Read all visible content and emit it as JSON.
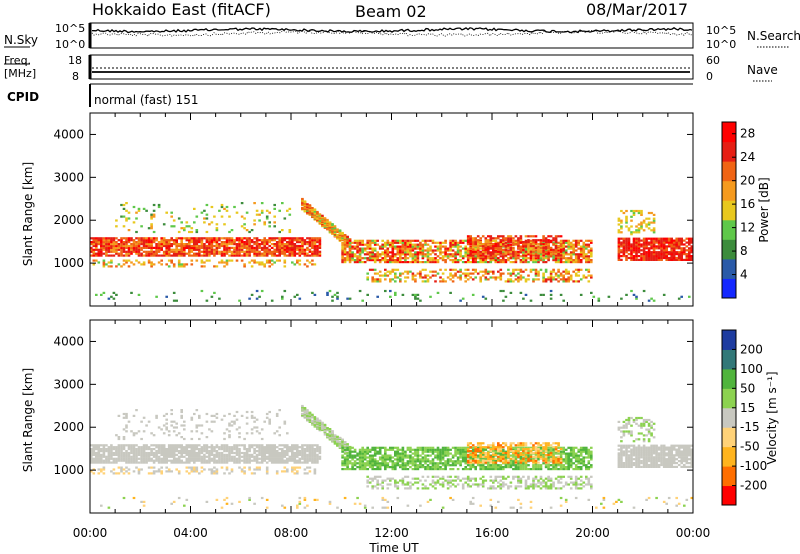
{
  "header": {
    "station": "Hokkaido East (fitACF)",
    "beam": "Beam 02",
    "date": "08/Mar/2017"
  },
  "noise_panel": {
    "left_label": "N.Sky",
    "right_label": "N.Search",
    "ticks": [
      "10^5",
      "10^0"
    ]
  },
  "freq_panel": {
    "left_label_1": "Freq.",
    "left_label_2": "[MHz]",
    "left_ticks": [
      "18",
      "8"
    ],
    "right_label": "Nave",
    "right_ticks": [
      "60",
      "0"
    ]
  },
  "cpid": {
    "label": "CPID",
    "mode_text": "normal (fast) 151"
  },
  "colors": {
    "power": [
      "#1428ff",
      "#2a5aa8",
      "#3c8c3c",
      "#5fc84a",
      "#e8c81e",
      "#f59a1e",
      "#f06414",
      "#e61e14",
      "#ff0000"
    ],
    "velocity": [
      "#ff0000",
      "#ff6e00",
      "#ffb41e",
      "#ffd278",
      "#c8c8c0",
      "#8cd250",
      "#50b43c",
      "#327878",
      "#1e3ca0"
    ]
  },
  "chart_data": [
    {
      "type": "heatmap",
      "name": "power",
      "xlabel": "",
      "ylabel": "Slant Range [km]",
      "x_ticks": [
        "00:00",
        "04:00",
        "08:00",
        "12:00",
        "16:00",
        "20:00",
        "00:00"
      ],
      "y_ticks": [
        "1000",
        "2000",
        "3000",
        "4000"
      ],
      "ylim": [
        0,
        4500
      ],
      "colorbar": {
        "label": "Power [dB]",
        "ticks": [
          "4",
          "8",
          "12",
          "16",
          "20",
          "24",
          "28"
        ],
        "range": [
          0,
          30
        ]
      }
    },
    {
      "type": "heatmap",
      "name": "velocity",
      "xlabel": "Time UT",
      "ylabel": "Slant Range [km]",
      "x_ticks": [
        "00:00",
        "04:00",
        "08:00",
        "12:00",
        "16:00",
        "20:00",
        "00:00"
      ],
      "y_ticks": [
        "1000",
        "2000",
        "3000",
        "4000"
      ],
      "ylim": [
        0,
        4500
      ],
      "colorbar": {
        "label": "Velocity [m s⁻¹]",
        "ticks": [
          "200",
          "100",
          "50",
          "15",
          "-15",
          "-50",
          "-100",
          "-200"
        ]
      }
    }
  ]
}
